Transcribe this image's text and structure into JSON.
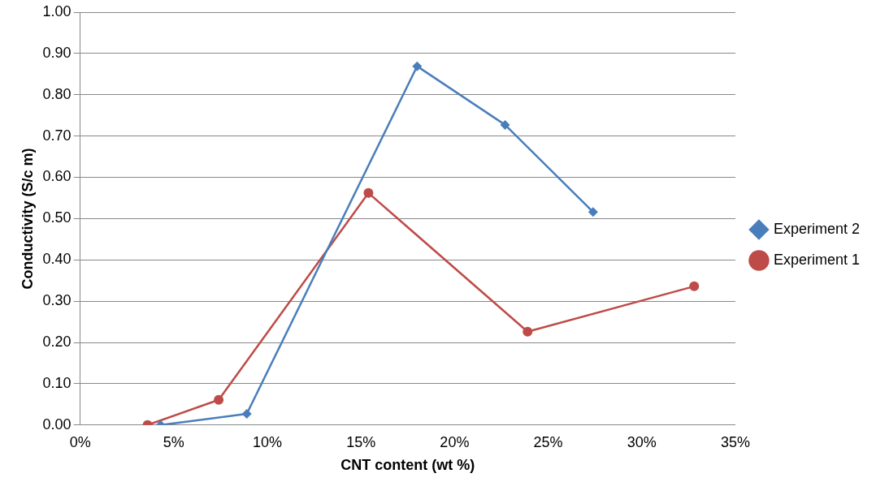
{
  "chart_data": {
    "type": "line",
    "xlabel": "CNT content (wt %)",
    "ylabel": "Conductivity (S/c m)",
    "xlim": [
      0,
      35
    ],
    "xticks": [
      {
        "value": 0,
        "label": "0%"
      },
      {
        "value": 5,
        "label": "5%"
      },
      {
        "value": 10,
        "label": "10%"
      },
      {
        "value": 15,
        "label": "15%"
      },
      {
        "value": 20,
        "label": "20%"
      },
      {
        "value": 25,
        "label": "25%"
      },
      {
        "value": 30,
        "label": "30%"
      },
      {
        "value": 35,
        "label": "35%"
      }
    ],
    "ylim": [
      0,
      1
    ],
    "yticks": [
      {
        "value": 0,
        "label": "0.00"
      },
      {
        "value": 0.1,
        "label": "0.10"
      },
      {
        "value": 0.2,
        "label": "0.20"
      },
      {
        "value": 0.3,
        "label": "0.30"
      },
      {
        "value": 0.4,
        "label": "0.40"
      },
      {
        "value": 0.5,
        "label": "0.50"
      },
      {
        "value": 0.6,
        "label": "0.60"
      },
      {
        "value": 0.7,
        "label": "0.70"
      },
      {
        "value": 0.8,
        "label": "0.80"
      },
      {
        "value": 0.9,
        "label": "0.90"
      },
      {
        "value": 1,
        "label": "1.00"
      }
    ],
    "grid": "y",
    "legend": "right",
    "line_style": "solid",
    "series": [
      {
        "name": "Experiment 2",
        "color": "#4a7ebb",
        "marker": "diamond",
        "x": [
          4.3,
          8.9,
          18.0,
          22.7,
          27.4
        ],
        "values": [
          0,
          0.027,
          0.869,
          0.727,
          0.516
        ]
      },
      {
        "name": "Experiment 1",
        "color": "#be4b48",
        "marker": "circle",
        "x": [
          3.6,
          7.4,
          15.4,
          23.9,
          32.8
        ],
        "values": [
          0,
          0.061,
          0.562,
          0.226,
          0.336
        ]
      }
    ]
  }
}
